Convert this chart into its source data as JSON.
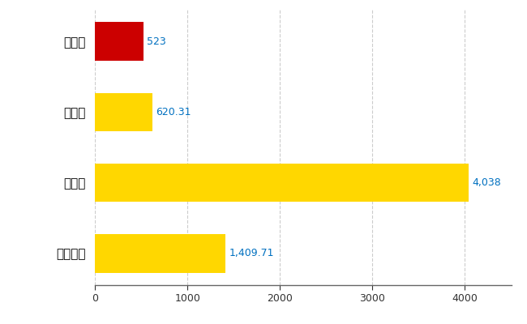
{
  "categories": [
    "全国平均",
    "県最大",
    "県平均",
    "白鷹町"
  ],
  "values": [
    1409.71,
    4038,
    620.31,
    523
  ],
  "bar_colors": [
    "#FFD700",
    "#FFD700",
    "#FFD700",
    "#CC0000"
  ],
  "value_labels": [
    "1,409.71",
    "4,038",
    "620.31",
    "523"
  ],
  "xlim": [
    0,
    4500
  ],
  "xticks": [
    0,
    1000,
    2000,
    3000,
    4000
  ],
  "xtick_labels": [
    "0",
    "1000",
    "2000",
    "3000",
    "4000"
  ],
  "background_color": "#FFFFFF",
  "grid_color": "#CCCCCC",
  "label_color": "#0070C0",
  "bar_height": 0.55,
  "figure_width": 6.5,
  "figure_height": 4.0
}
